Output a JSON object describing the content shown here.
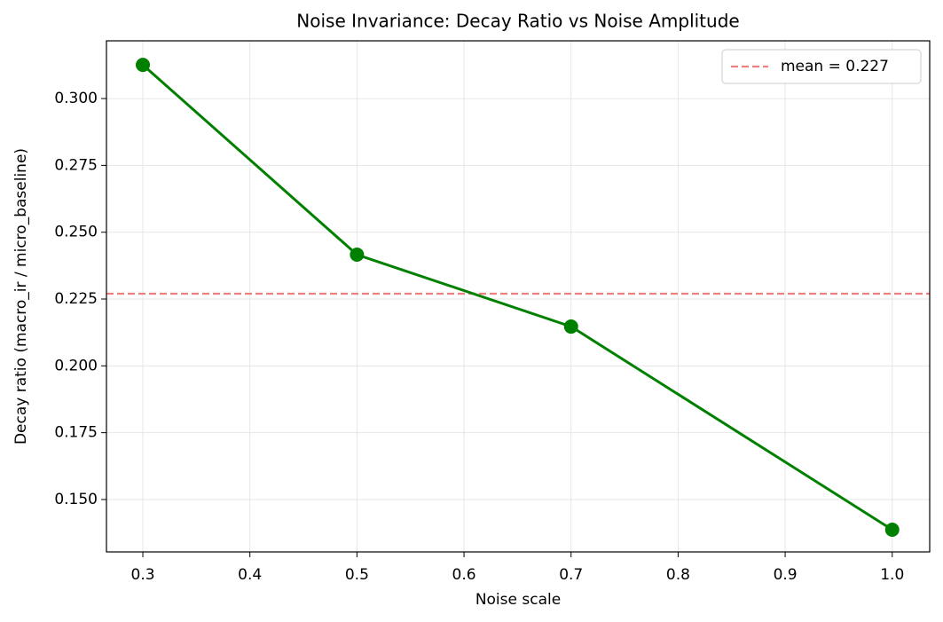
{
  "chart_data": {
    "type": "line",
    "title": "Noise Invariance: Decay Ratio vs Noise Amplitude",
    "xlabel": "Noise scale",
    "ylabel": "Decay ratio (macro_ir / micro_baseline)",
    "x": [
      0.3,
      0.5,
      0.7,
      1.0
    ],
    "series": [
      {
        "name": null,
        "color": "#008000",
        "values": [
          0.3126,
          0.2416,
          0.2147,
          0.1387
        ]
      }
    ],
    "hline": {
      "label": "mean = 0.227",
      "value": 0.227,
      "color": "#f08080"
    },
    "xlim": [
      0.266,
      1.035
    ],
    "ylim": [
      0.1304,
      0.3216
    ],
    "xticks": [
      0.3,
      0.4,
      0.5,
      0.6,
      0.7,
      0.8,
      0.9,
      {
        "value": 1.0,
        "label": "1.0"
      }
    ],
    "yticks": [
      {
        "value": 0.15,
        "label": "0.150"
      },
      {
        "value": 0.175,
        "label": "0.175"
      },
      {
        "value": 0.2,
        "label": "0.200"
      },
      {
        "value": 0.225,
        "label": "0.225"
      },
      {
        "value": 0.25,
        "label": "0.250"
      },
      {
        "value": 0.275,
        "label": "0.275"
      },
      {
        "value": 0.3,
        "label": "0.300"
      }
    ],
    "grid": true,
    "legend": "upper right"
  }
}
